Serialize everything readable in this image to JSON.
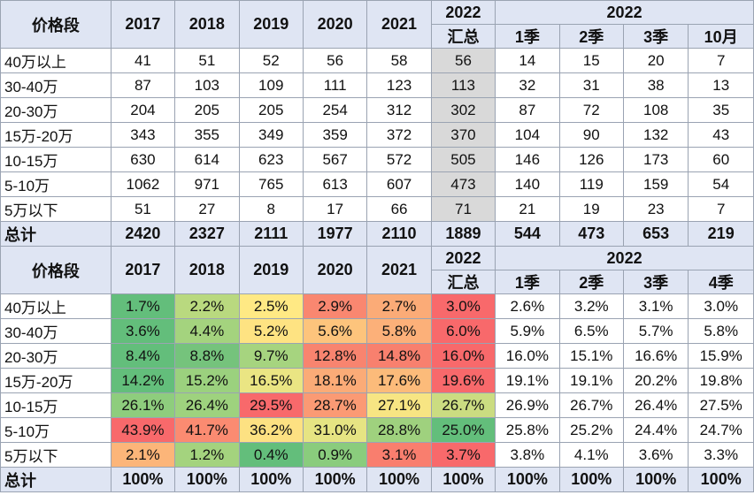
{
  "table1": {
    "price_header": "价格段",
    "years": [
      "2017",
      "2018",
      "2019",
      "2020",
      "2021"
    ],
    "summary_header": [
      "2022",
      "汇总"
    ],
    "group_header": "2022",
    "sub_headers": [
      "1季",
      "2季",
      "3季",
      "10月"
    ],
    "rows": [
      {
        "label": "40万以上",
        "cells": [
          "41",
          "51",
          "52",
          "56",
          "58",
          "56",
          "14",
          "15",
          "20",
          "7"
        ]
      },
      {
        "label": "30-40万",
        "cells": [
          "87",
          "103",
          "109",
          "111",
          "123",
          "113",
          "32",
          "31",
          "38",
          "13"
        ]
      },
      {
        "label": "20-30万",
        "cells": [
          "204",
          "205",
          "205",
          "254",
          "312",
          "302",
          "87",
          "72",
          "108",
          "35"
        ]
      },
      {
        "label": "15万-20万",
        "cells": [
          "343",
          "355",
          "349",
          "359",
          "372",
          "370",
          "104",
          "90",
          "132",
          "43"
        ]
      },
      {
        "label": "10-15万",
        "cells": [
          "630",
          "614",
          "623",
          "567",
          "572",
          "505",
          "146",
          "126",
          "173",
          "60"
        ]
      },
      {
        "label": "5-10万",
        "cells": [
          "1062",
          "971",
          "765",
          "613",
          "607",
          "473",
          "140",
          "119",
          "159",
          "54"
        ]
      },
      {
        "label": "5万以下",
        "cells": [
          "51",
          "27",
          "8",
          "17",
          "66",
          "71",
          "21",
          "19",
          "23",
          "7"
        ]
      }
    ],
    "total": {
      "label": "总计",
      "cells": [
        "2420",
        "2327",
        "2111",
        "1977",
        "2110",
        "1889",
        "544",
        "473",
        "653",
        "219"
      ]
    }
  },
  "table2": {
    "price_header": "价格段",
    "years": [
      "2017",
      "2018",
      "2019",
      "2020",
      "2021"
    ],
    "summary_header": [
      "2022",
      "汇总"
    ],
    "group_header": "2022",
    "sub_headers": [
      "1季",
      "2季",
      "3季",
      "4季"
    ],
    "rows": [
      {
        "label": "40万以上",
        "cells": [
          "1.7%",
          "2.2%",
          "2.5%",
          "2.9%",
          "2.7%",
          "3.0%",
          "2.6%",
          "3.2%",
          "3.1%",
          "3.0%"
        ]
      },
      {
        "label": "30-40万",
        "cells": [
          "3.6%",
          "4.4%",
          "5.2%",
          "5.6%",
          "5.8%",
          "6.0%",
          "5.9%",
          "6.5%",
          "5.7%",
          "5.8%"
        ]
      },
      {
        "label": "20-30万",
        "cells": [
          "8.4%",
          "8.8%",
          "9.7%",
          "12.8%",
          "14.8%",
          "16.0%",
          "16.0%",
          "15.1%",
          "16.6%",
          "15.9%"
        ]
      },
      {
        "label": "15万-20万",
        "cells": [
          "14.2%",
          "15.2%",
          "16.5%",
          "18.1%",
          "17.6%",
          "19.6%",
          "19.1%",
          "19.1%",
          "20.2%",
          "19.8%"
        ]
      },
      {
        "label": "10-15万",
        "cells": [
          "26.1%",
          "26.4%",
          "29.5%",
          "28.7%",
          "27.1%",
          "26.7%",
          "26.9%",
          "26.7%",
          "26.4%",
          "27.5%"
        ]
      },
      {
        "label": "5-10万",
        "cells": [
          "43.9%",
          "41.7%",
          "36.2%",
          "31.0%",
          "28.8%",
          "25.0%",
          "25.8%",
          "25.2%",
          "24.4%",
          "24.7%"
        ]
      },
      {
        "label": "5万以下",
        "cells": [
          "2.1%",
          "1.2%",
          "0.4%",
          "0.9%",
          "3.1%",
          "3.7%",
          "3.8%",
          "4.1%",
          "3.6%",
          "3.3%"
        ]
      }
    ],
    "total": {
      "label": "总计",
      "cells": [
        "100%",
        "100%",
        "100%",
        "100%",
        "100%",
        "100%",
        "100%",
        "100%",
        "100%",
        "100%"
      ]
    },
    "cell_colors": [
      [
        "#63be7b",
        "#b9d97f",
        "#ffe984",
        "#f98770",
        "#fbab77",
        "#f8696b"
      ],
      [
        "#63be7b",
        "#a4d37e",
        "#fee382",
        "#fdc47c",
        "#fcb079",
        "#f8696b"
      ],
      [
        "#63be7b",
        "#75c37c",
        "#a6d47f",
        "#f8846f",
        "#f8806e",
        "#f8696b"
      ],
      [
        "#63be7b",
        "#9bd17e",
        "#eae583",
        "#fbab77",
        "#fcbb7a",
        "#f8696b"
      ],
      [
        "#8ecd7d",
        "#9ed27e",
        "#f8696b",
        "#fb9a74",
        "#f7e583",
        "#cbdc81"
      ],
      [
        "#f8696b",
        "#fb8b71",
        "#fde182",
        "#e6e483",
        "#9fd17e",
        "#63be7b"
      ],
      [
        "#fcb579",
        "#a4d37e",
        "#63be7b",
        "#8acc7d",
        "#f97e6e",
        "#f8696b"
      ]
    ]
  }
}
